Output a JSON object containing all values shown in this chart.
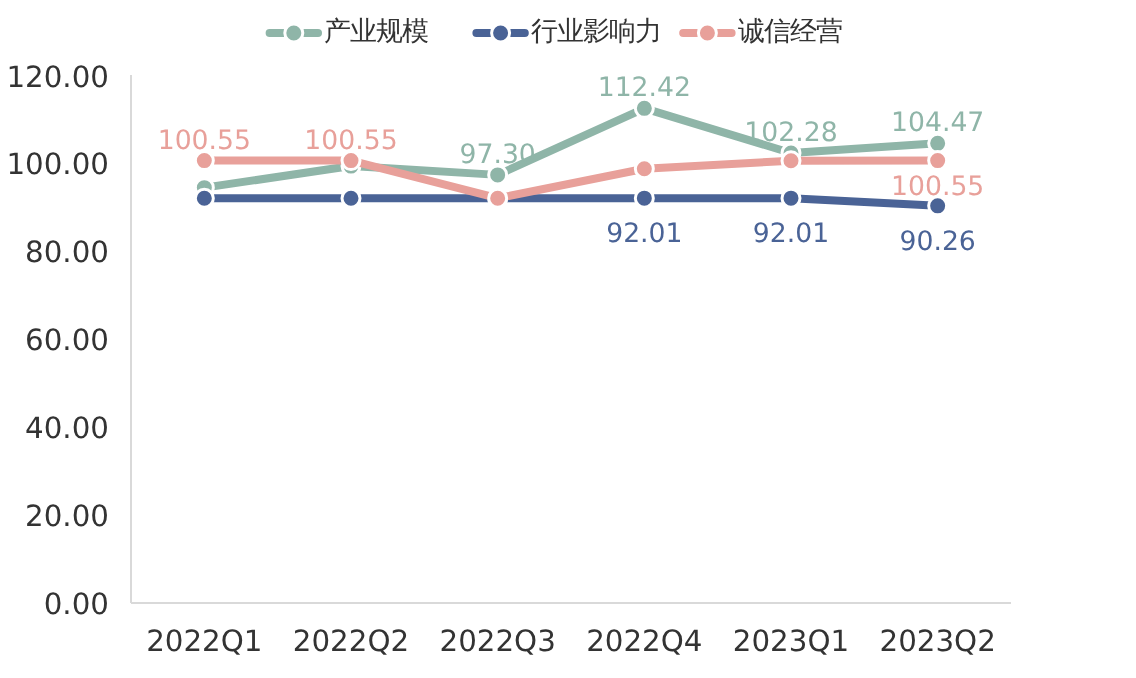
{
  "chart_data": {
    "type": "line",
    "categories": [
      "2022Q1",
      "2022Q2",
      "2022Q3",
      "2022Q4",
      "2023Q1",
      "2023Q2"
    ],
    "series": [
      {
        "name": "产业规模",
        "color": "#8fb5a8",
        "values": [
          94.4,
          99.3,
          97.3,
          112.42,
          102.28,
          104.47
        ],
        "value_labels": [
          null,
          null,
          "97.30",
          "112.42",
          "102.28",
          "104.47"
        ]
      },
      {
        "name": "行业影响力",
        "color": "#4a6396",
        "values": [
          92.0,
          92.0,
          92.0,
          92.01,
          92.01,
          90.26
        ],
        "value_labels": [
          null,
          null,
          null,
          "92.01",
          "92.01",
          "90.26"
        ]
      },
      {
        "name": "诚信经营",
        "color": "#e8a09a",
        "values": [
          100.55,
          100.55,
          92.0,
          98.7,
          100.5,
          100.55
        ],
        "value_labels": [
          "100.55",
          "100.55",
          null,
          null,
          null,
          "100.55"
        ]
      }
    ],
    "ylim": [
      0,
      120
    ],
    "yticks": [
      {
        "value": 0,
        "label": "0.00"
      },
      {
        "value": 20,
        "label": "20.00"
      },
      {
        "value": 40,
        "label": "40.00"
      },
      {
        "value": 60,
        "label": "60.00"
      },
      {
        "value": 80,
        "label": "80.00"
      },
      {
        "value": 100,
        "label": "100.00"
      },
      {
        "value": 120,
        "label": "120.00"
      }
    ],
    "grid": false,
    "legend": "top",
    "marker": "circle",
    "line_style": "solid"
  }
}
